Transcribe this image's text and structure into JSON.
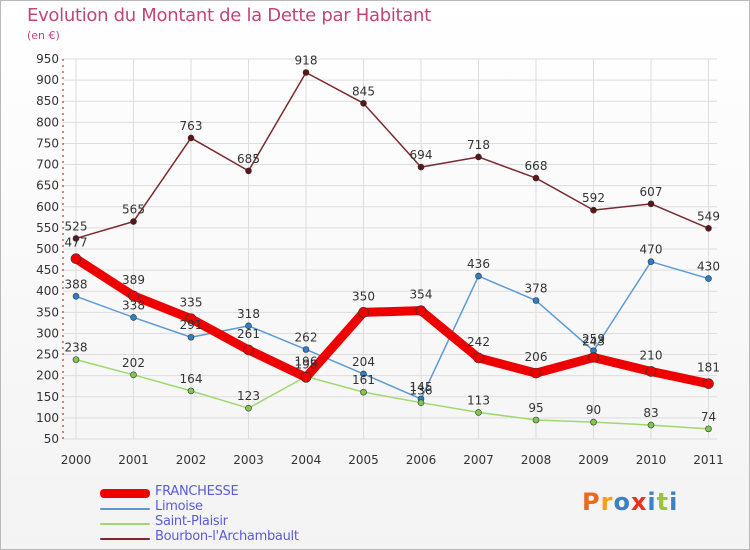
{
  "header": {
    "title": "Evolution du Montant de la Dette par Habitant",
    "unit": "(en €)"
  },
  "logo": {
    "text": "Proxiti",
    "colors": [
      "#e86a1f",
      "#f2a01e",
      "#3b82c4",
      "#e8311f",
      "#3b82c4",
      "#9bc43b",
      "#3b82c4"
    ]
  },
  "chart_data": {
    "type": "line",
    "title": "Evolution du Montant de la Dette par Habitant",
    "ylabel": "(en €)",
    "x": [
      "2000",
      "2001",
      "2002",
      "2003",
      "2004",
      "2005",
      "2006",
      "2007",
      "2008",
      "2009",
      "2010",
      "2011"
    ],
    "ylim": [
      50,
      950
    ],
    "yticks": [
      50,
      100,
      150,
      200,
      250,
      300,
      350,
      400,
      450,
      500,
      550,
      600,
      650,
      700,
      750,
      800,
      850,
      900,
      950
    ],
    "grid": true,
    "legend_position": "bottom-left",
    "series": [
      {
        "name": "FRANCHESSE",
        "color": "#ee0000",
        "marker": "#ee0000",
        "width": 9,
        "values": [
          477,
          389,
          335,
          261,
          196,
          350,
          354,
          242,
          206,
          243,
          210,
          181
        ],
        "label_dy": [
          -12,
          -12,
          -12,
          -12,
          -12,
          -12,
          -12,
          -12,
          -12,
          -12,
          -12,
          -12
        ]
      },
      {
        "name": "Limoise",
        "color": "#5b9bd5",
        "marker": "#2f7fc8",
        "width": 1.5,
        "values": [
          388,
          338,
          291,
          318,
          262,
          204,
          145,
          436,
          378,
          259,
          470,
          430
        ],
        "label_dy": [
          -8,
          -8,
          -8,
          -8,
          -8,
          -8,
          -8,
          -8,
          -8,
          -8,
          -8,
          -8
        ]
      },
      {
        "name": "Saint-Plaisir",
        "color": "#9fd86d",
        "marker": "#7ec850",
        "width": 1.5,
        "values": [
          238,
          202,
          164,
          123,
          198,
          161,
          136,
          113,
          95,
          90,
          83,
          74
        ],
        "label_dy": [
          -8,
          -8,
          -8,
          -8,
          -8,
          -8,
          -8,
          -8,
          -8,
          -8,
          -8,
          -8
        ]
      },
      {
        "name": "Bourbon-l'Archambault",
        "color": "#7a2a2f",
        "marker": "#5a1518",
        "width": 1.5,
        "values": [
          525,
          565,
          763,
          685,
          918,
          845,
          694,
          718,
          668,
          592,
          607,
          549
        ],
        "label_dy": [
          -8,
          -8,
          -8,
          -8,
          -8,
          -8,
          -8,
          -8,
          -8,
          -8,
          -8,
          -8
        ]
      }
    ]
  }
}
